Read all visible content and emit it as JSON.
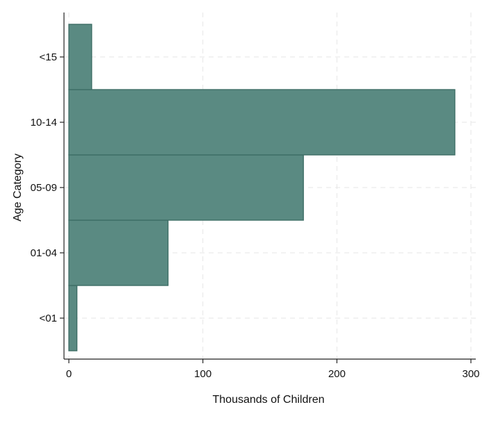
{
  "chart_data": {
    "type": "bar",
    "orientation": "horizontal",
    "categories": [
      "<01",
      "01-04",
      "05-09",
      "10-14",
      "<15"
    ],
    "values": [
      6,
      74,
      175,
      288,
      17
    ],
    "title": "",
    "xlabel": "Thousands of Children",
    "ylabel": "Age Category",
    "xlim": [
      0,
      300
    ],
    "xticks": [
      0,
      100,
      200,
      300
    ],
    "grid": true,
    "bar_color": "#5a8a82",
    "bar_edge_color": "#3e6e66"
  }
}
